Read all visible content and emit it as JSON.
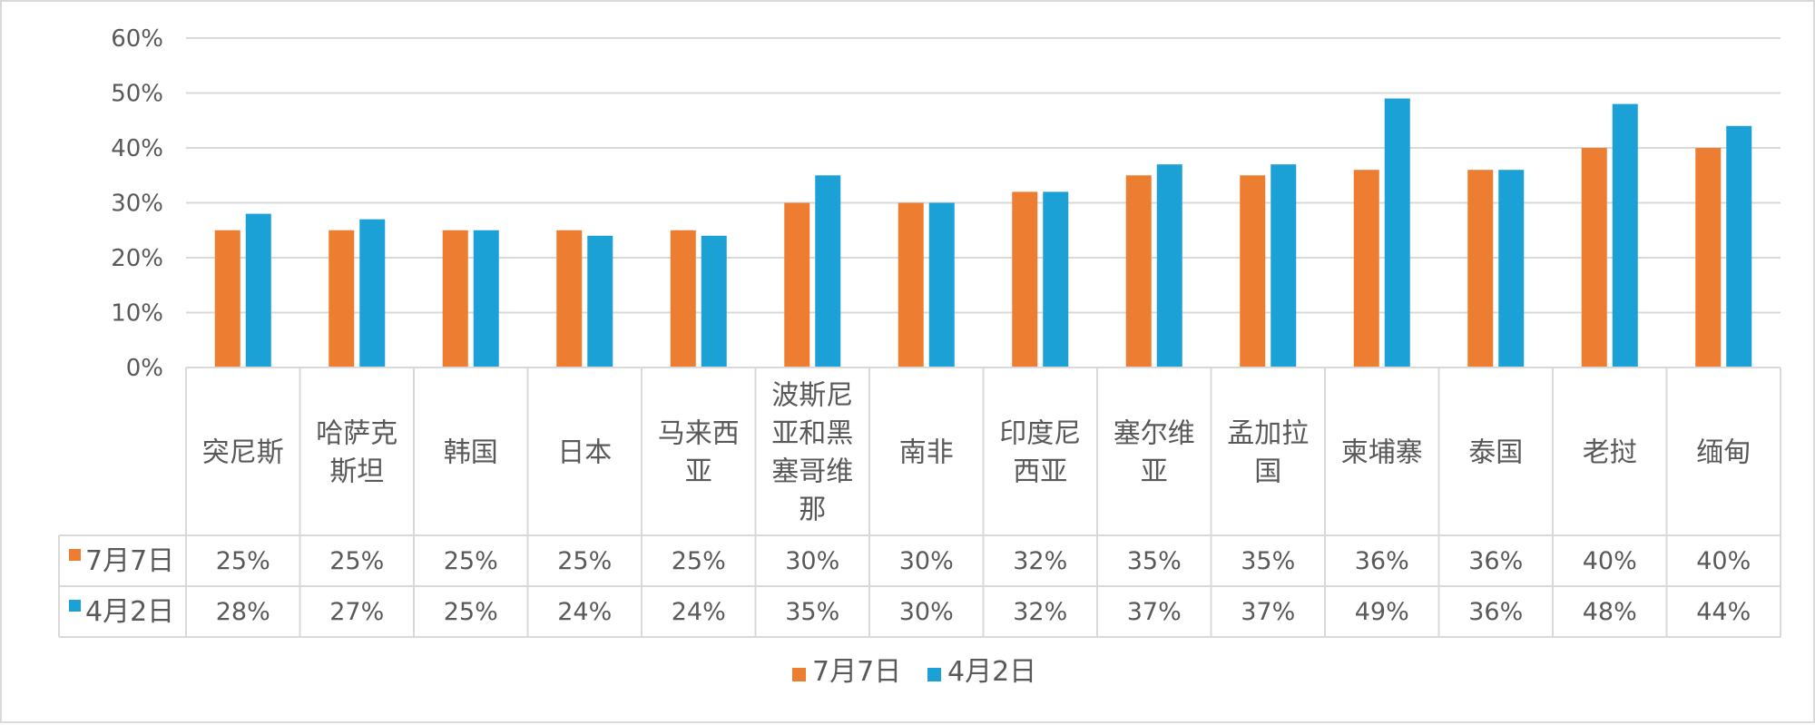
{
  "chart_data": {
    "type": "bar",
    "categories": [
      "突尼斯",
      "哈萨克斯坦",
      "韩国",
      "日本",
      "马来西亚",
      "波斯尼亚和黑塞哥维那",
      "南非",
      "印度尼西亚",
      "塞尔维亚",
      "孟加拉国",
      "柬埔寨",
      "泰国",
      "老挝",
      "缅甸"
    ],
    "category_label_lines": [
      [
        "突尼斯"
      ],
      [
        "哈萨克",
        "斯坦"
      ],
      [
        "韩国"
      ],
      [
        "日本"
      ],
      [
        "马来西",
        "亚"
      ],
      [
        "波斯尼",
        "亚和黑",
        "塞哥维",
        "那"
      ],
      [
        "南非"
      ],
      [
        "印度尼",
        "西亚"
      ],
      [
        "塞尔维",
        "亚"
      ],
      [
        "孟加拉",
        "国"
      ],
      [
        "柬埔寨"
      ],
      [
        "泰国"
      ],
      [
        "老挝"
      ],
      [
        "缅甸"
      ]
    ],
    "series": [
      {
        "name": "7月7日",
        "color": "#ED7D31",
        "values": [
          25,
          25,
          25,
          25,
          25,
          30,
          30,
          32,
          35,
          35,
          36,
          36,
          40,
          40
        ],
        "labels": [
          "25%",
          "25%",
          "25%",
          "25%",
          "25%",
          "30%",
          "30%",
          "32%",
          "35%",
          "35%",
          "36%",
          "36%",
          "40%",
          "40%"
        ]
      },
      {
        "name": "4月2日",
        "color": "#1BA1D6",
        "values": [
          28,
          27,
          25,
          24,
          24,
          35,
          30,
          32,
          37,
          37,
          49,
          36,
          48,
          44
        ],
        "labels": [
          "28%",
          "27%",
          "25%",
          "24%",
          "24%",
          "35%",
          "30%",
          "32%",
          "37%",
          "37%",
          "49%",
          "36%",
          "48%",
          "44%"
        ]
      }
    ],
    "y_ticks": [
      "0%",
      "10%",
      "20%",
      "30%",
      "40%",
      "50%",
      "60%"
    ],
    "ylim": [
      0,
      60
    ],
    "grid": true,
    "legend": "bottom-center",
    "data_table": true
  }
}
